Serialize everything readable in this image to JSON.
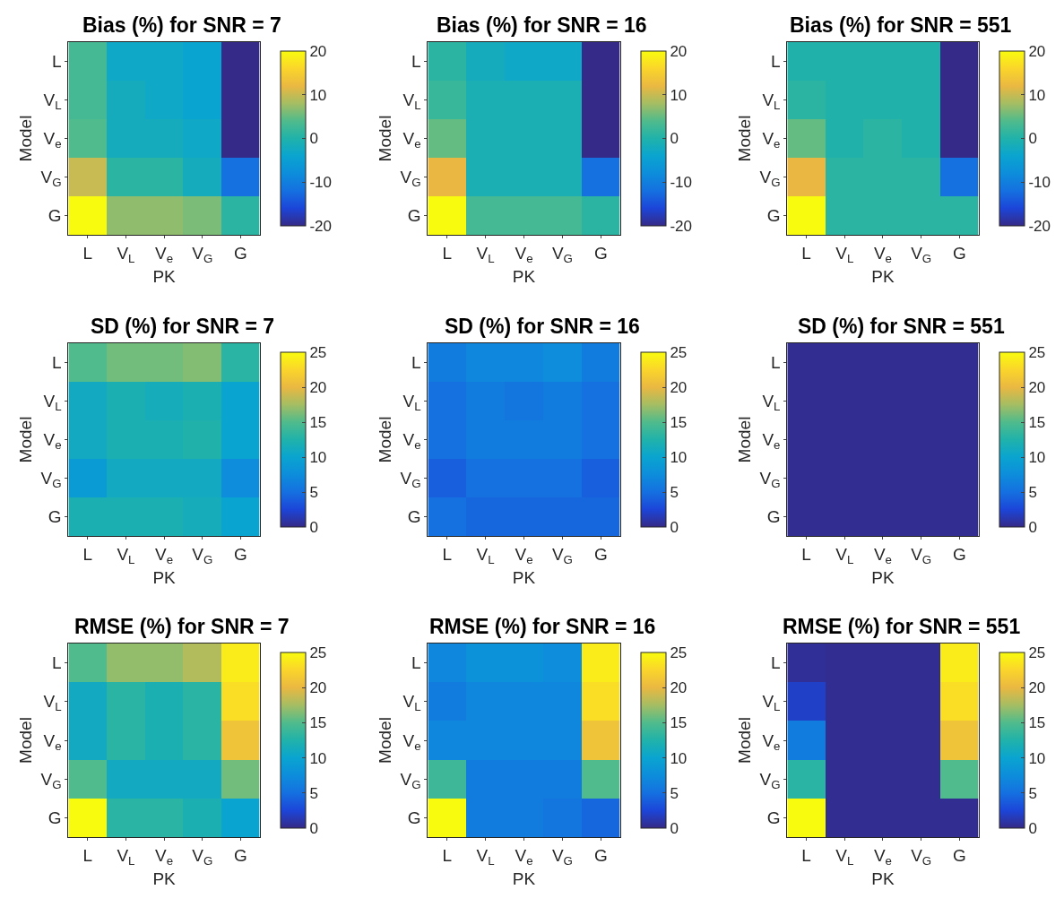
{
  "chart_data": [
    {
      "type": "heatmap",
      "title": "Bias (%) for SNR = 7",
      "xlabel": "PK",
      "ylabel": "Model",
      "categories": [
        "L",
        "V$_{L}$",
        "V$_{e}$",
        "V$_{G}$",
        "G"
      ],
      "y_categories": [
        "L",
        "V$_{L}$",
        "V$_{e}$",
        "V$_{G}$",
        "G"
      ],
      "clim": [
        -20,
        20
      ],
      "cticks": [
        -20,
        -10,
        0,
        10,
        20
      ],
      "cells": [
        [
          3,
          -3,
          -3,
          -4,
          -20
        ],
        [
          3,
          -2,
          -3,
          -4,
          -20
        ],
        [
          4,
          -2,
          -2,
          -3,
          -20
        ],
        [
          10,
          1,
          1,
          -2,
          -12
        ],
        [
          20,
          7,
          7,
          6,
          1
        ]
      ]
    },
    {
      "type": "heatmap",
      "title": "Bias (%) for SNR = 16",
      "xlabel": "PK",
      "ylabel": "Model",
      "categories": [
        "L",
        "V$_{L}$",
        "V$_{e}$",
        "V$_{G}$",
        "G"
      ],
      "y_categories": [
        "L",
        "V$_{L}$",
        "V$_{e}$",
        "V$_{G}$",
        "G"
      ],
      "clim": [
        -20,
        20
      ],
      "cticks": [
        -20,
        -10,
        0,
        10,
        20
      ],
      "cells": [
        [
          1,
          -2,
          -3,
          -3,
          -20
        ],
        [
          2,
          -1,
          -1,
          -1,
          -20
        ],
        [
          5,
          -1,
          -1,
          -1,
          -20
        ],
        [
          12,
          -1,
          -1,
          -1,
          -12
        ],
        [
          20,
          3,
          3,
          3,
          1
        ]
      ]
    },
    {
      "type": "heatmap",
      "title": "Bias (%) for SNR = 551",
      "xlabel": "PK",
      "ylabel": "Model",
      "categories": [
        "L",
        "V$_{L}$",
        "V$_{e}$",
        "V$_{G}$",
        "G"
      ],
      "y_categories": [
        "L",
        "V$_{L}$",
        "V$_{e}$",
        "V$_{G}$",
        "G"
      ],
      "clim": [
        -20,
        20
      ],
      "cticks": [
        -20,
        -10,
        0,
        10,
        20
      ],
      "cells": [
        [
          0,
          0,
          0,
          0,
          -20
        ],
        [
          1,
          0,
          0,
          0,
          -20
        ],
        [
          5,
          0,
          1,
          0,
          -20
        ],
        [
          12,
          1,
          1,
          1,
          -12
        ],
        [
          20,
          1,
          1,
          1,
          1
        ]
      ]
    },
    {
      "type": "heatmap",
      "title": "SD (%) for SNR = 7",
      "xlabel": "PK",
      "ylabel": "Model",
      "categories": [
        "L",
        "V$_{L}$",
        "V$_{e}$",
        "V$_{G}$",
        "G"
      ],
      "y_categories": [
        "L",
        "V$_{L}$",
        "V$_{e}$",
        "V$_{G}$",
        "G"
      ],
      "clim": [
        0,
        25
      ],
      "cticks": [
        0,
        5,
        10,
        15,
        20,
        25
      ],
      "cells": [
        [
          15,
          16,
          16,
          16.5,
          13
        ],
        [
          11,
          12,
          11.5,
          12,
          10
        ],
        [
          11,
          12,
          12,
          12.5,
          10
        ],
        [
          9,
          11,
          11,
          11,
          7.5
        ],
        [
          12,
          12,
          12,
          11.5,
          10
        ]
      ]
    },
    {
      "type": "heatmap",
      "title": "SD (%) for SNR = 16",
      "xlabel": "PK",
      "ylabel": "Model",
      "categories": [
        "L",
        "V$_{L}$",
        "V$_{e}$",
        "V$_{G}$",
        "G"
      ],
      "y_categories": [
        "L",
        "V$_{L}$",
        "V$_{e}$",
        "V$_{G}$",
        "G"
      ],
      "clim": [
        0,
        25
      ],
      "cticks": [
        0,
        5,
        10,
        15,
        20,
        25
      ],
      "cells": [
        [
          6,
          7,
          7,
          7.5,
          6
        ],
        [
          5,
          6,
          5.5,
          6,
          5
        ],
        [
          5,
          6,
          6,
          6,
          5
        ],
        [
          4,
          5,
          5,
          5,
          4
        ],
        [
          5,
          4.5,
          4.5,
          4.5,
          4.5
        ]
      ]
    },
    {
      "type": "heatmap",
      "title": "SD (%) for SNR = 551",
      "xlabel": "PK",
      "ylabel": "Model",
      "categories": [
        "L",
        "V$_{L}$",
        "V$_{e}$",
        "V$_{G}$",
        "G"
      ],
      "y_categories": [
        "L",
        "V$_{L}$",
        "V$_{e}$",
        "V$_{G}$",
        "G"
      ],
      "clim": [
        0,
        25
      ],
      "cticks": [
        0,
        5,
        10,
        15,
        20,
        25
      ],
      "cells": [
        [
          0.3,
          0.3,
          0.3,
          0.3,
          0.3
        ],
        [
          0.3,
          0.3,
          0.3,
          0.3,
          0.3
        ],
        [
          0.3,
          0.3,
          0.3,
          0.3,
          0.3
        ],
        [
          0.3,
          0.3,
          0.3,
          0.3,
          0.3
        ],
        [
          0.3,
          0.3,
          0.3,
          0.3,
          0.3
        ]
      ]
    },
    {
      "type": "heatmap",
      "title": "RMSE (%) for SNR = 7",
      "xlabel": "PK",
      "ylabel": "Model",
      "categories": [
        "L",
        "V$_{L}$",
        "V$_{e}$",
        "V$_{G}$",
        "G"
      ],
      "y_categories": [
        "L",
        "V$_{L}$",
        "V$_{e}$",
        "V$_{G}$",
        "G"
      ],
      "clim": [
        0,
        25
      ],
      "cticks": [
        0,
        5,
        10,
        15,
        20,
        25
      ],
      "cells": [
        [
          15,
          17,
          17,
          18,
          24
        ],
        [
          11,
          13,
          12,
          13,
          23
        ],
        [
          11,
          13,
          12,
          13,
          21
        ],
        [
          15,
          11,
          11,
          11,
          16
        ],
        [
          25,
          13,
          13,
          12,
          10
        ]
      ]
    },
    {
      "type": "heatmap",
      "title": "RMSE (%) for SNR = 16",
      "xlabel": "PK",
      "ylabel": "Model",
      "categories": [
        "L",
        "V$_{L}$",
        "V$_{e}$",
        "V$_{G}$",
        "G"
      ],
      "y_categories": [
        "L",
        "V$_{L}$",
        "V$_{e}$",
        "V$_{G}$",
        "G"
      ],
      "clim": [
        0,
        25
      ],
      "cticks": [
        0,
        5,
        10,
        15,
        20,
        25
      ],
      "cells": [
        [
          7,
          8,
          8,
          7.5,
          24
        ],
        [
          6,
          7,
          7,
          7,
          23
        ],
        [
          7,
          7,
          7,
          7,
          21
        ],
        [
          14,
          6,
          6,
          6,
          15
        ],
        [
          25,
          6,
          6,
          5.5,
          4.5
        ]
      ]
    },
    {
      "type": "heatmap",
      "title": "RMSE (%) for SNR = 551",
      "xlabel": "PK",
      "ylabel": "Model",
      "categories": [
        "L",
        "V$_{L}$",
        "V$_{e}$",
        "V$_{G}$",
        "G"
      ],
      "y_categories": [
        "L",
        "V$_{L}$",
        "V$_{e}$",
        "V$_{G}$",
        "G"
      ],
      "clim": [
        0,
        25
      ],
      "cticks": [
        0,
        5,
        10,
        15,
        20,
        25
      ],
      "cells": [
        [
          0.5,
          0.3,
          0.3,
          0.3,
          24
        ],
        [
          2,
          0.3,
          0.3,
          0.3,
          23
        ],
        [
          6,
          0.3,
          0.3,
          0.3,
          21
        ],
        [
          13,
          0.3,
          0.3,
          0.3,
          15
        ],
        [
          25,
          0.3,
          0.3,
          0.3,
          0.3
        ]
      ]
    }
  ]
}
